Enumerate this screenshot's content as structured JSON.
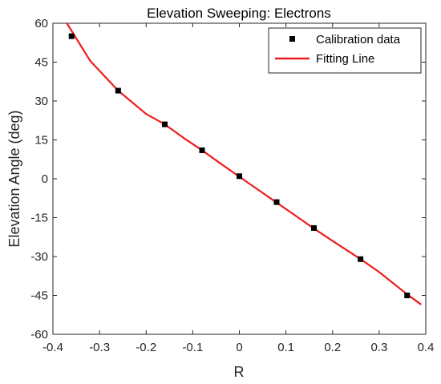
{
  "chart_data": {
    "type": "scatter",
    "title": "Elevation Sweeping: Electrons",
    "xlabel": "R",
    "ylabel": "Elevation Angle (deg)",
    "xlim": [
      -0.4,
      0.4
    ],
    "ylim": [
      -60,
      60
    ],
    "xticks": [
      "-0.4",
      "-0.3",
      "-0.2",
      "-0.1",
      "0",
      "0.1",
      "0.2",
      "0.3",
      "0.4"
    ],
    "yticks": [
      "60",
      "45",
      "30",
      "15",
      "0",
      "-15",
      "-30",
      "-45",
      "-60"
    ],
    "grid": false,
    "legend_position": "top-right",
    "series": [
      {
        "name": "Calibration data",
        "kind": "markers",
        "color": "#000000",
        "x": [
          -0.36,
          -0.26,
          -0.16,
          -0.08,
          0.0,
          0.08,
          0.16,
          0.26,
          0.36
        ],
        "y": [
          55,
          34,
          21,
          11,
          1,
          -9,
          -19,
          -31,
          -45
        ]
      },
      {
        "name": "Fitting Line",
        "kind": "line",
        "color": "#ee1c1c",
        "x": [
          -0.37,
          -0.32,
          -0.26,
          -0.2,
          -0.16,
          -0.12,
          -0.08,
          -0.04,
          0.0,
          0.04,
          0.08,
          0.12,
          0.16,
          0.2,
          0.26,
          0.3,
          0.36,
          0.39
        ],
        "y": [
          60,
          45.5,
          34,
          25,
          21,
          15.8,
          11,
          5.8,
          0.8,
          -4.2,
          -9.2,
          -14.2,
          -19.2,
          -24,
          -31,
          -36,
          -44.6,
          -48.5
        ]
      }
    ]
  }
}
